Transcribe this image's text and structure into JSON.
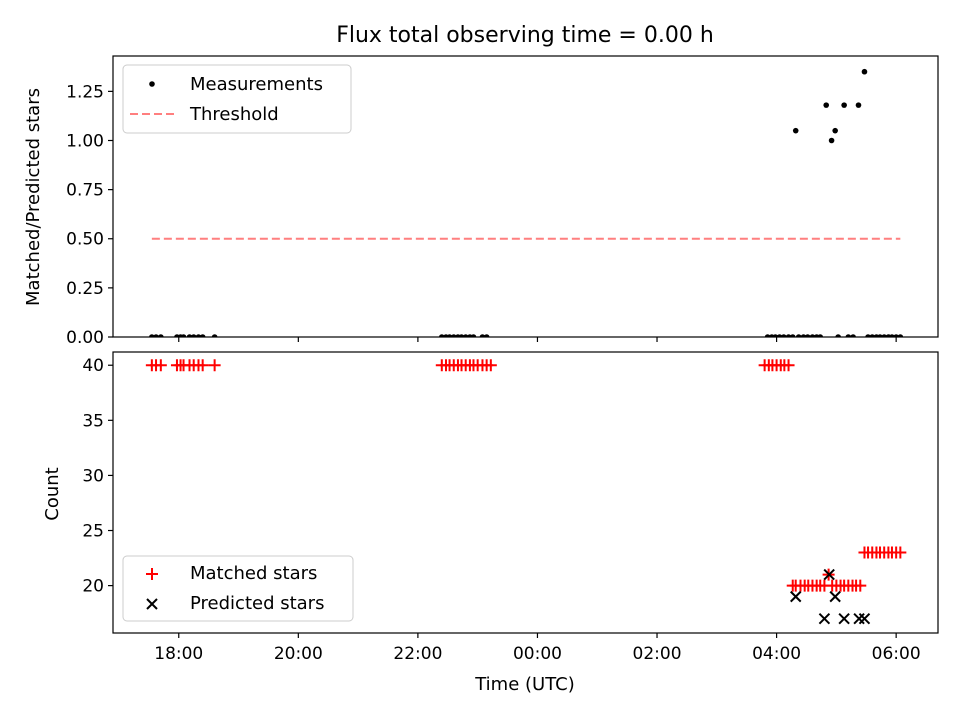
{
  "chart_data": [
    {
      "type": "scatter",
      "title": "Flux total observing time = 0.00 h",
      "xlabel": "",
      "ylabel": "Matched/Predicted stars",
      "x_unit": "hours relative to 00:00 UTC",
      "xlim": [
        -7.1,
        6.7
      ],
      "ylim": [
        0,
        1.43
      ],
      "yticks": [
        "0.00",
        "0.25",
        "0.50",
        "0.75",
        "1.00",
        "1.25"
      ],
      "ytick_values": [
        0,
        0.25,
        0.5,
        0.75,
        1.0,
        1.25
      ],
      "legend_position": "upper-left",
      "series": [
        {
          "name": "Measurements",
          "marker": "dot",
          "color": "#000000",
          "x": [
            -6.45,
            -6.38,
            -6.3,
            -6.03,
            -5.97,
            -5.92,
            -5.82,
            -5.75,
            -5.67,
            -5.6,
            -5.4,
            -1.6,
            -1.53,
            -1.47,
            -1.4,
            -1.33,
            -1.27,
            -1.2,
            -1.13,
            -1.07,
            -0.92,
            -0.85,
            3.85,
            3.92,
            3.98,
            4.05,
            4.12,
            4.2,
            4.27,
            4.37,
            4.45,
            4.52,
            4.6,
            4.67,
            4.73,
            5.03,
            5.2,
            5.28,
            5.53,
            5.6,
            5.67,
            5.73,
            5.8,
            5.87,
            5.93,
            6.0,
            6.07,
            4.32,
            4.83,
            4.92,
            4.98,
            5.13,
            5.37,
            5.47
          ],
          "y": [
            0,
            0,
            0,
            0,
            0,
            0,
            0,
            0,
            0,
            0,
            0,
            0,
            0,
            0,
            0,
            0,
            0,
            0,
            0,
            0,
            0,
            0,
            0,
            0,
            0,
            0,
            0,
            0,
            0,
            0,
            0,
            0,
            0,
            0,
            0,
            0,
            0,
            0,
            0,
            0,
            0,
            0,
            0,
            0,
            0,
            0,
            0,
            1.05,
            1.18,
            1.0,
            1.05,
            1.18,
            1.18,
            1.35
          ]
        },
        {
          "name": "Threshold",
          "line": "dashed",
          "color": "#ff7f7f",
          "x": [
            -6.45,
            6.07
          ],
          "y": [
            0.5,
            0.5
          ]
        }
      ]
    },
    {
      "type": "scatter",
      "title": "",
      "xlabel": "Time (UTC)",
      "ylabel": "Count",
      "x_unit": "hours relative to 00:00 UTC",
      "xlim": [
        -7.1,
        6.7
      ],
      "ylim": [
        15.7,
        41.2
      ],
      "xticks": [
        "18:00",
        "20:00",
        "22:00",
        "00:00",
        "02:00",
        "04:00",
        "06:00"
      ],
      "xtick_values": [
        -6,
        -4,
        -2,
        0,
        2,
        4,
        6
      ],
      "yticks": [
        "20",
        "25",
        "30",
        "35",
        "40"
      ],
      "ytick_values": [
        20,
        25,
        30,
        35,
        40
      ],
      "legend_position": "lower-left",
      "series": [
        {
          "name": "Matched stars",
          "marker": "plus",
          "color": "#ff0000",
          "x": [
            -6.45,
            -6.38,
            -6.3,
            -6.03,
            -5.97,
            -5.92,
            -5.82,
            -5.75,
            -5.67,
            -5.6,
            -5.4,
            -1.6,
            -1.53,
            -1.47,
            -1.4,
            -1.33,
            -1.27,
            -1.2,
            -1.13,
            -1.07,
            -1.0,
            -0.92,
            -0.85,
            -0.78,
            3.8,
            3.87,
            3.93,
            4.0,
            4.07,
            4.13,
            4.2,
            4.27,
            4.32,
            4.4,
            4.47,
            4.53,
            4.6,
            4.67,
            4.73,
            4.8,
            4.87,
            4.93,
            5.0,
            5.07,
            5.13,
            5.2,
            5.27,
            5.33,
            5.4,
            5.47,
            5.53,
            5.6,
            5.67,
            5.73,
            5.8,
            5.87,
            5.93,
            6.0,
            6.07
          ],
          "y": [
            40,
            40,
            40,
            40,
            40,
            40,
            40,
            40,
            40,
            40,
            40,
            40,
            40,
            40,
            40,
            40,
            40,
            40,
            40,
            40,
            40,
            40,
            40,
            40,
            40,
            40,
            40,
            40,
            40,
            40,
            40,
            20,
            20,
            20,
            20,
            20,
            20,
            20,
            20,
            20,
            21,
            20,
            20,
            20,
            20,
            20,
            20,
            20,
            20,
            23,
            23,
            23,
            23,
            23,
            23,
            23,
            23,
            23,
            23
          ]
        },
        {
          "name": "Predicted stars",
          "marker": "x",
          "color": "#000000",
          "x": [
            4.32,
            4.8,
            4.88,
            4.98,
            5.13,
            5.38,
            5.47
          ],
          "y": [
            19,
            17,
            21,
            19,
            17,
            17,
            17
          ]
        }
      ]
    }
  ]
}
